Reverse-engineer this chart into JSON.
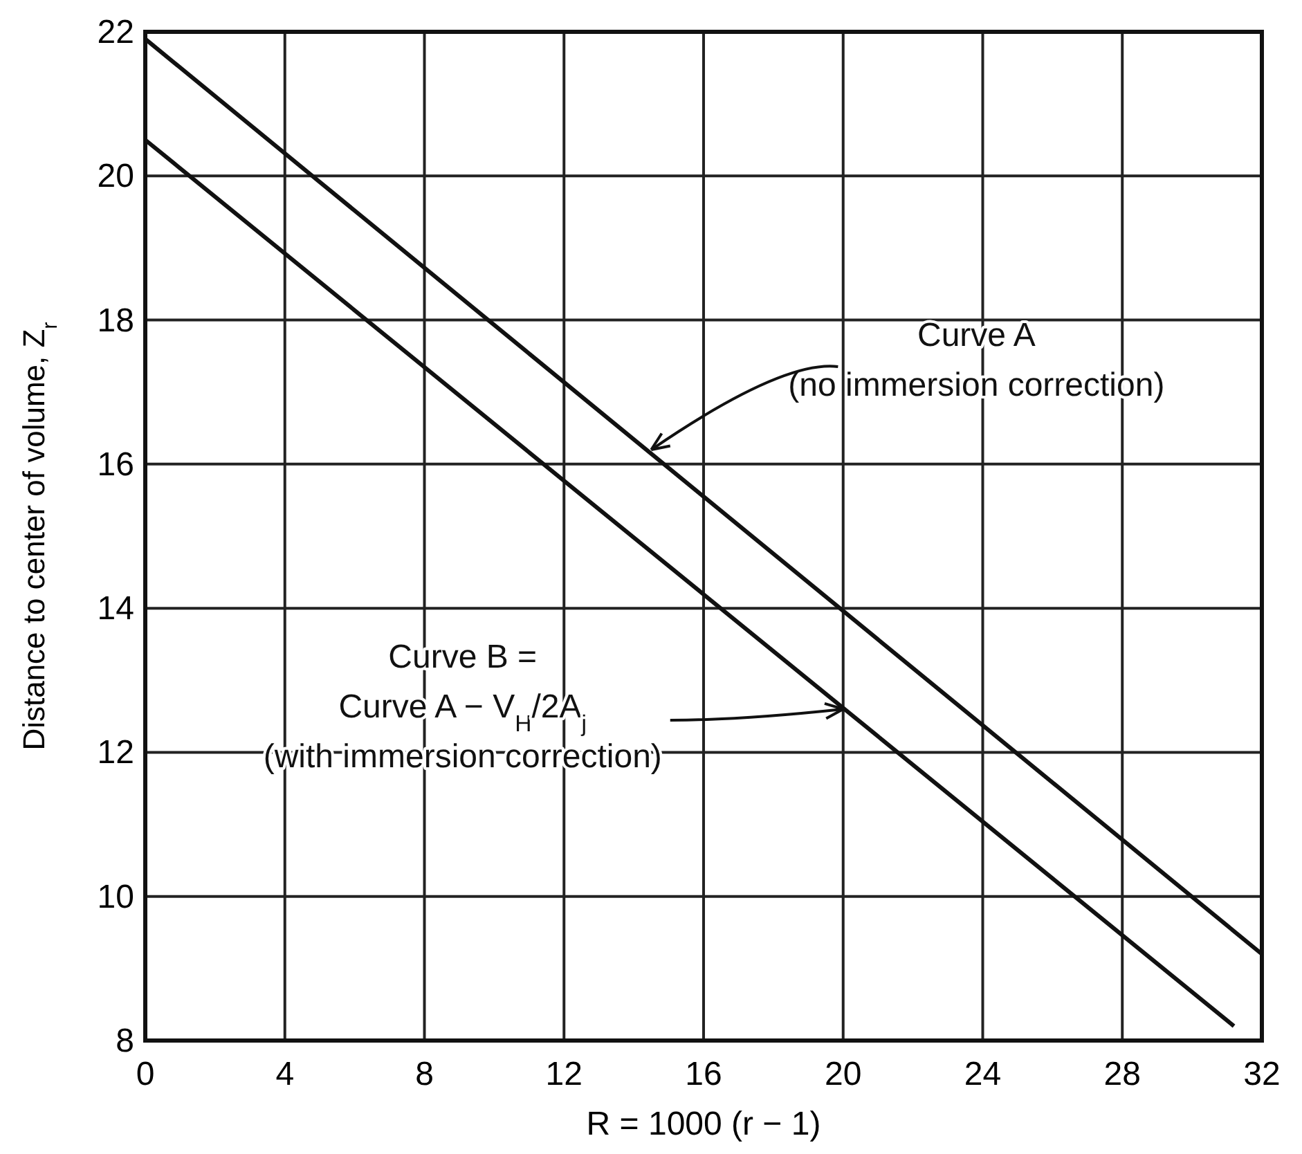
{
  "chart_data": {
    "type": "line",
    "xlabel": "R = 1000 (r − 1)",
    "ylabel": "Distance to center of volume, Z$_{r}$",
    "xlim": [
      0,
      32
    ],
    "ylim": [
      8,
      22
    ],
    "xticks": [
      0,
      4,
      8,
      12,
      16,
      20,
      24,
      28,
      32
    ],
    "yticks": [
      8,
      10,
      12,
      14,
      16,
      18,
      20,
      22
    ],
    "grid": true,
    "marker": "none",
    "line_style": "solid",
    "series": [
      {
        "color": "#111111",
        "x": [
          0,
          32
        ],
        "values": [
          21.9,
          9.2
        ]
      },
      {
        "color": "#111111",
        "x": [
          0,
          31.2
        ],
        "values": [
          20.5,
          8.2
        ]
      }
    ],
    "annotations": [
      {
        "text": "Curve A\n(no immersion correction)",
        "x": 14.5,
        "y": 16.2
      },
      {
        "text": "Curve B =\nCurve A − V$_{H}$/2A$_{j}$\n(with immersion correction)",
        "x": 20,
        "y": 12.6
      }
    ]
  }
}
